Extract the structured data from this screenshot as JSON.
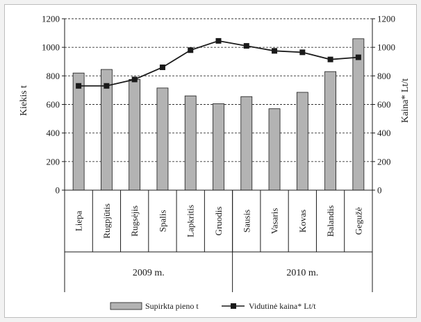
{
  "chart_data": {
    "type": "bar",
    "categories": [
      "Liepa",
      "Rugpjūtis",
      "Rugsėjis",
      "Spalis",
      "Lapkritis",
      "Gruodis",
      "Sausis",
      "Vasaris",
      "Kovas",
      "Balandis",
      "Gegužė"
    ],
    "groups": [
      {
        "label": "2009 m.",
        "from": 0,
        "to": 5
      },
      {
        "label": "2010 m.",
        "from": 6,
        "to": 10
      }
    ],
    "series": [
      {
        "name": "Supirkta pieno t",
        "type": "bar",
        "axis": "left",
        "color": "#b3b3b3",
        "values": [
          820,
          845,
          775,
          715,
          660,
          605,
          655,
          570,
          685,
          830,
          1060
        ]
      },
      {
        "name": "Vidutinė kaina* Lt/t",
        "type": "line",
        "axis": "right",
        "color": "#1a1a1a",
        "values": [
          730,
          730,
          775,
          860,
          980,
          1045,
          1010,
          975,
          965,
          915,
          930
        ]
      }
    ],
    "ylabel": "Kiekis t",
    "y2label": "Kaina* Lt/t",
    "ylim": [
      0,
      1200
    ],
    "y2lim": [
      0,
      1200
    ],
    "yticks": [
      0,
      200,
      400,
      600,
      800,
      1000,
      1200
    ],
    "grid": "dashed-horizontal",
    "legend_position": "bottom"
  }
}
